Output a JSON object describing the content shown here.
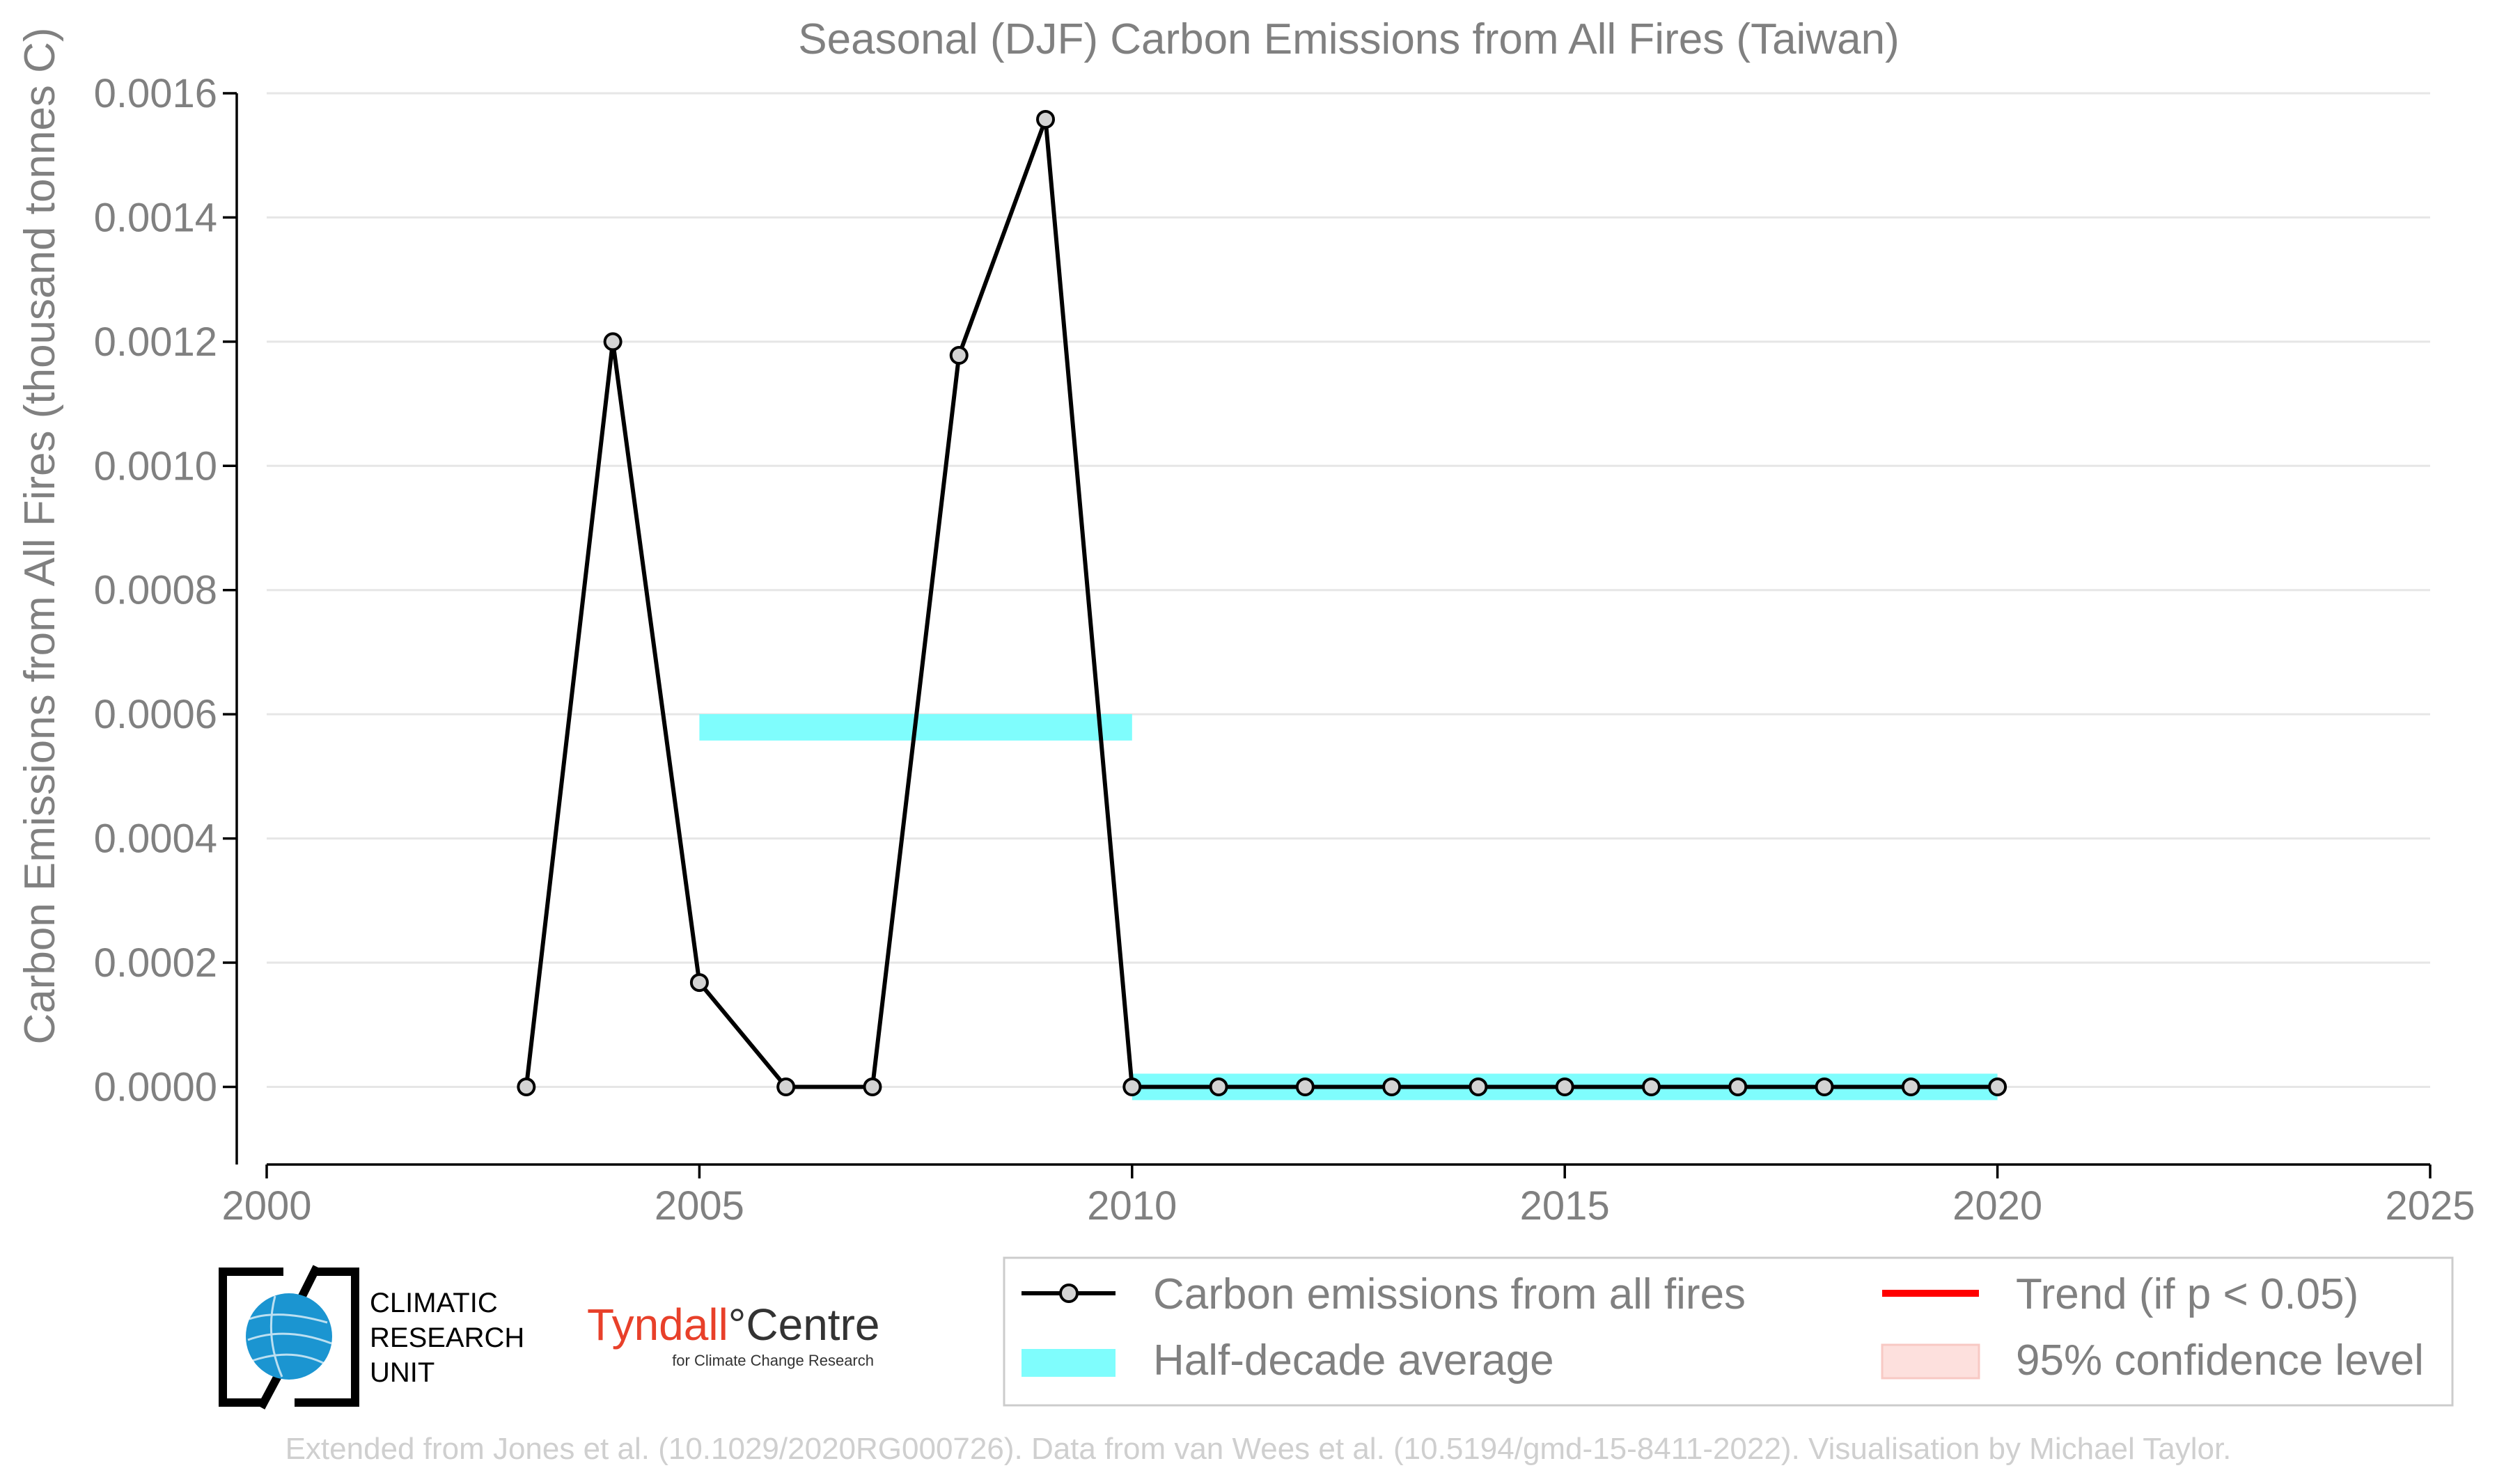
{
  "chart_data": {
    "type": "line",
    "title": "Seasonal (DJF) Carbon Emissions from All Fires (Taiwan)",
    "ylabel": "Carbon Emissions from All Fires (thousand tonnes C)",
    "xlabel": "",
    "xlim": [
      2000,
      2025
    ],
    "ylim": [
      -0.000125,
      0.0016
    ],
    "x_ticks": [
      2000,
      2005,
      2010,
      2015,
      2020,
      2025
    ],
    "y_ticks": [
      0.0,
      0.0002,
      0.0004,
      0.0006,
      0.0008,
      0.001,
      0.0012,
      0.0014,
      0.0016
    ],
    "y_tick_labels": [
      "0.0000",
      "0.0002",
      "0.0004",
      "0.0006",
      "0.0008",
      "0.0010",
      "0.0012",
      "0.0014",
      "0.0016"
    ],
    "grid": true,
    "series": [
      {
        "name": "Carbon emissions from all fires",
        "color": "#000000",
        "marker_fill": "#d3d3d3",
        "x": [
          2003,
          2004,
          2005,
          2006,
          2007,
          2008,
          2009,
          2010,
          2011,
          2012,
          2013,
          2014,
          2015,
          2016,
          2017,
          2018,
          2019,
          2020
        ],
        "y": [
          0.0,
          0.0012,
          0.000168,
          0.0,
          0.0,
          0.001178,
          0.001558,
          0.0,
          0.0,
          0.0,
          0.0,
          0.0,
          0.0,
          0.0,
          0.0,
          0.0,
          0.0,
          0.0
        ]
      }
    ],
    "half_decade_average": {
      "name": "Half-decade average",
      "color": "#7ffdfd",
      "segments": [
        {
          "x_start": 2005,
          "x_end": 2010,
          "y": 0.000579
        },
        {
          "x_start": 2010,
          "x_end": 2020,
          "y": 0.0
        }
      ]
    },
    "legend": {
      "placement": "bottom-right",
      "entries": [
        {
          "label": "Carbon emissions from all fires",
          "kind": "line-marker",
          "color": "#000000"
        },
        {
          "label": "Trend (if p < 0.05)",
          "kind": "line",
          "color": "#ff0000"
        },
        {
          "label": "Half-decade average",
          "kind": "band",
          "color": "#7ffdfd"
        },
        {
          "label": "95% confidence level",
          "kind": "patch",
          "color": "#fde0dd"
        }
      ]
    }
  },
  "logos": {
    "cru": {
      "line1": "CLIMATIC",
      "line2": "RESEARCH",
      "line3": "UNIT",
      "globe_color": "#1b95d1"
    },
    "tyndall": {
      "word1": "Tyndall",
      "degree": "°",
      "word2": "Centre",
      "subtitle": "for Climate Change Research",
      "accent_color": "#e8402a"
    }
  },
  "footer": {
    "credit": "Extended from Jones et al. (10.1029/2020RG000726). Data from van Wees et al. (10.5194/gmd-15-8411-2022). Visualisation by Michael Taylor."
  }
}
